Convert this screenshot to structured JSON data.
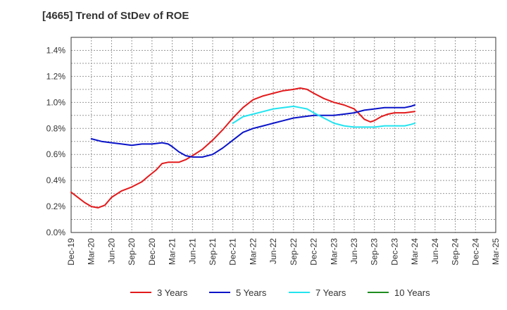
{
  "chart_data": {
    "type": "line",
    "title": "[4665]  Trend of StDev of ROE",
    "xlabel": "",
    "ylabel": "",
    "x": [
      "Dec-19",
      "Mar-20",
      "Jun-20",
      "Sep-20",
      "Dec-20",
      "Mar-21",
      "Jun-21",
      "Sep-21",
      "Dec-21",
      "Mar-22",
      "Jun-22",
      "Sep-22",
      "Dec-22",
      "Mar-23",
      "Jun-23",
      "Sep-23",
      "Dec-23",
      "Mar-24",
      "Jun-24",
      "Sep-24",
      "Dec-24",
      "Mar-25"
    ],
    "ylim": [
      0,
      1.5
    ],
    "yticks": [
      0,
      0.2,
      0.4,
      0.6,
      0.8,
      1.0,
      1.2,
      1.4
    ],
    "ytick_labels": [
      "0.0%",
      "0.2%",
      "0.4%",
      "0.6%",
      "0.8%",
      "1.0%",
      "1.2%",
      "1.4%"
    ],
    "grid": true,
    "legend_position": "bottom",
    "series": [
      {
        "name": "3 Years",
        "color": "#e31a1c",
        "points": [
          [
            0,
            0.31
          ],
          [
            0.33,
            0.27
          ],
          [
            0.67,
            0.23
          ],
          [
            1,
            0.2
          ],
          [
            1.33,
            0.19
          ],
          [
            1.67,
            0.21
          ],
          [
            2,
            0.27
          ],
          [
            2.5,
            0.32
          ],
          [
            3,
            0.35
          ],
          [
            3.5,
            0.39
          ],
          [
            3.8,
            0.43
          ],
          [
            4.2,
            0.48
          ],
          [
            4.5,
            0.53
          ],
          [
            4.8,
            0.54
          ],
          [
            5,
            0.54
          ],
          [
            5.33,
            0.54
          ],
          [
            5.67,
            0.56
          ],
          [
            6,
            0.59
          ],
          [
            6.5,
            0.64
          ],
          [
            7,
            0.71
          ],
          [
            7.5,
            0.79
          ],
          [
            8,
            0.88
          ],
          [
            8.5,
            0.96
          ],
          [
            9,
            1.02
          ],
          [
            9.5,
            1.05
          ],
          [
            10,
            1.07
          ],
          [
            10.5,
            1.09
          ],
          [
            11,
            1.1
          ],
          [
            11.33,
            1.11
          ],
          [
            11.67,
            1.1
          ],
          [
            12,
            1.07
          ],
          [
            12.5,
            1.03
          ],
          [
            13,
            1.0
          ],
          [
            13.5,
            0.98
          ],
          [
            14,
            0.95
          ],
          [
            14.2,
            0.92
          ],
          [
            14.5,
            0.87
          ],
          [
            14.8,
            0.85
          ],
          [
            15,
            0.86
          ],
          [
            15.33,
            0.89
          ],
          [
            15.67,
            0.91
          ],
          [
            16,
            0.92
          ],
          [
            16.5,
            0.92
          ],
          [
            17,
            0.93
          ]
        ]
      },
      {
        "name": "5 Years",
        "color": "#0a14c8",
        "points": [
          [
            1,
            0.72
          ],
          [
            1.5,
            0.7
          ],
          [
            2,
            0.69
          ],
          [
            2.5,
            0.68
          ],
          [
            3,
            0.67
          ],
          [
            3.5,
            0.68
          ],
          [
            4,
            0.68
          ],
          [
            4.5,
            0.69
          ],
          [
            4.8,
            0.68
          ],
          [
            5,
            0.66
          ],
          [
            5.33,
            0.62
          ],
          [
            5.67,
            0.59
          ],
          [
            6,
            0.58
          ],
          [
            6.5,
            0.58
          ],
          [
            7,
            0.6
          ],
          [
            7.5,
            0.65
          ],
          [
            8,
            0.71
          ],
          [
            8.5,
            0.77
          ],
          [
            9,
            0.8
          ],
          [
            9.5,
            0.82
          ],
          [
            10,
            0.84
          ],
          [
            10.5,
            0.86
          ],
          [
            11,
            0.88
          ],
          [
            11.5,
            0.89
          ],
          [
            12,
            0.9
          ],
          [
            12.5,
            0.9
          ],
          [
            13,
            0.9
          ],
          [
            13.5,
            0.91
          ],
          [
            14,
            0.92
          ],
          [
            14.5,
            0.94
          ],
          [
            15,
            0.95
          ],
          [
            15.5,
            0.96
          ],
          [
            16,
            0.96
          ],
          [
            16.5,
            0.96
          ],
          [
            16.8,
            0.97
          ],
          [
            17,
            0.98
          ]
        ]
      },
      {
        "name": "7 Years",
        "color": "#22e4f0",
        "points": [
          [
            8,
            0.84
          ],
          [
            8.5,
            0.89
          ],
          [
            9,
            0.91
          ],
          [
            9.5,
            0.93
          ],
          [
            10,
            0.95
          ],
          [
            10.5,
            0.96
          ],
          [
            11,
            0.97
          ],
          [
            11.33,
            0.96
          ],
          [
            11.67,
            0.95
          ],
          [
            12,
            0.92
          ],
          [
            12.5,
            0.88
          ],
          [
            13,
            0.84
          ],
          [
            13.5,
            0.82
          ],
          [
            14,
            0.81
          ],
          [
            14.5,
            0.81
          ],
          [
            15,
            0.81
          ],
          [
            15.5,
            0.82
          ],
          [
            16,
            0.82
          ],
          [
            16.5,
            0.82
          ],
          [
            16.8,
            0.83
          ],
          [
            17,
            0.84
          ]
        ]
      },
      {
        "name": "10 Years",
        "color": "#1e8c1e",
        "points": []
      }
    ]
  }
}
